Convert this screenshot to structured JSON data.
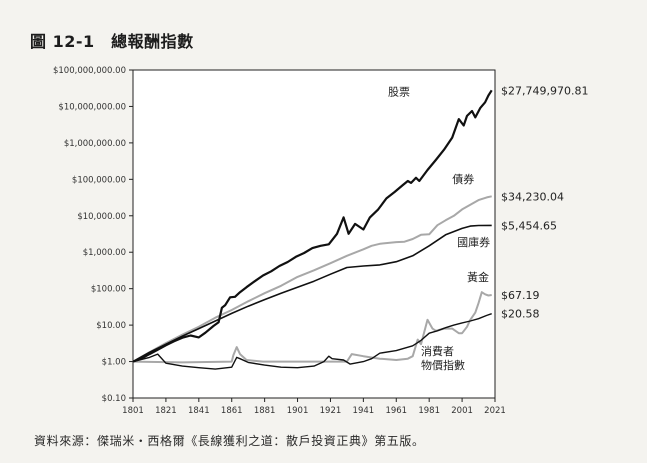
{
  "figure": {
    "title": "圖 12-1　總報酬指數",
    "source": "資料來源：傑瑞米・西格爾《長線獲利之道：散戶投資正典》第五版。"
  },
  "chart_data": {
    "type": "line",
    "y_scale": "log",
    "xlim": [
      1801,
      2021
    ],
    "ylim": [
      0.1,
      100000000
    ],
    "grid": false,
    "x_ticks": [
      1801,
      1821,
      1841,
      1861,
      1881,
      1901,
      1921,
      1941,
      1961,
      1981,
      2001,
      2021
    ],
    "y_ticks": [
      {
        "value": 0.1,
        "label": "$0.10"
      },
      {
        "value": 1,
        "label": "$1.00"
      },
      {
        "value": 10,
        "label": "$10.00"
      },
      {
        "value": 100,
        "label": "$100.00"
      },
      {
        "value": 1000,
        "label": "$1,000.00"
      },
      {
        "value": 10000,
        "label": "$10,000.00"
      },
      {
        "value": 100000,
        "label": "$100,000.00"
      },
      {
        "value": 1000000,
        "label": "$1,000,000.00"
      },
      {
        "value": 10000000,
        "label": "$10,000,000.00"
      },
      {
        "value": 100000000,
        "label": "$100,000,000.00"
      }
    ],
    "series": [
      {
        "name": "股票",
        "end_label": "$27,749,970.81",
        "color": "#111111",
        "width": 2.2,
        "label_anchor": [
          1956,
          20000000
        ],
        "points": [
          [
            1801,
            1
          ],
          [
            1806,
            1.2
          ],
          [
            1811,
            1.6
          ],
          [
            1816,
            2.1
          ],
          [
            1821,
            2.8
          ],
          [
            1826,
            3.6
          ],
          [
            1831,
            4.5
          ],
          [
            1836,
            5.2
          ],
          [
            1841,
            4.6
          ],
          [
            1845,
            6.2
          ],
          [
            1850,
            9.5
          ],
          [
            1853,
            12
          ],
          [
            1855,
            30
          ],
          [
            1857,
            35
          ],
          [
            1860,
            58
          ],
          [
            1863,
            60
          ],
          [
            1866,
            80
          ],
          [
            1870,
            110
          ],
          [
            1875,
            160
          ],
          [
            1880,
            230
          ],
          [
            1885,
            300
          ],
          [
            1890,
            420
          ],
          [
            1895,
            540
          ],
          [
            1900,
            750
          ],
          [
            1905,
            950
          ],
          [
            1910,
            1300
          ],
          [
            1915,
            1500
          ],
          [
            1920,
            1650
          ],
          [
            1925,
            3200
          ],
          [
            1929,
            9000
          ],
          [
            1932,
            3200
          ],
          [
            1936,
            6000
          ],
          [
            1941,
            4200
          ],
          [
            1945,
            9000
          ],
          [
            1950,
            15000
          ],
          [
            1955,
            30000
          ],
          [
            1960,
            45000
          ],
          [
            1965,
            70000
          ],
          [
            1968,
            90000
          ],
          [
            1970,
            80000
          ],
          [
            1973,
            110000
          ],
          [
            1975,
            90000
          ],
          [
            1980,
            180000
          ],
          [
            1985,
            340000
          ],
          [
            1990,
            650000
          ],
          [
            1995,
            1400000
          ],
          [
            1999,
            4500000
          ],
          [
            2002,
            3000000
          ],
          [
            2004,
            5500000
          ],
          [
            2007,
            7500000
          ],
          [
            2009,
            5000000
          ],
          [
            2012,
            9000000
          ],
          [
            2015,
            13000000
          ],
          [
            2017,
            20000000
          ],
          [
            2019,
            27749970.81
          ]
        ]
      },
      {
        "name": "債券",
        "end_label": "$34,230.04",
        "color": "#a8a8a8",
        "width": 2,
        "label_anchor": [
          1995,
          80000
        ],
        "points": [
          [
            1801,
            1
          ],
          [
            1811,
            1.8
          ],
          [
            1821,
            3.2
          ],
          [
            1831,
            5.5
          ],
          [
            1841,
            9
          ],
          [
            1851,
            16
          ],
          [
            1861,
            26
          ],
          [
            1871,
            45
          ],
          [
            1881,
            75
          ],
          [
            1891,
            120
          ],
          [
            1901,
            210
          ],
          [
            1911,
            320
          ],
          [
            1921,
            500
          ],
          [
            1931,
            800
          ],
          [
            1941,
            1200
          ],
          [
            1946,
            1500
          ],
          [
            1951,
            1700
          ],
          [
            1961,
            1900
          ],
          [
            1966,
            1950
          ],
          [
            1971,
            2300
          ],
          [
            1976,
            3000
          ],
          [
            1981,
            3100
          ],
          [
            1986,
            5500
          ],
          [
            1991,
            7500
          ],
          [
            1996,
            10000
          ],
          [
            2001,
            15000
          ],
          [
            2006,
            20000
          ],
          [
            2011,
            27000
          ],
          [
            2016,
            32000
          ],
          [
            2019,
            34230.04
          ]
        ]
      },
      {
        "name": "國庫券",
        "end_label": "$5,454.65",
        "color": "#111111",
        "width": 1.6,
        "label_anchor": [
          1998,
          1500
        ],
        "points": [
          [
            1801,
            1
          ],
          [
            1811,
            1.8
          ],
          [
            1821,
            3
          ],
          [
            1831,
            5
          ],
          [
            1841,
            8
          ],
          [
            1851,
            13
          ],
          [
            1861,
            21
          ],
          [
            1871,
            33
          ],
          [
            1881,
            50
          ],
          [
            1891,
            75
          ],
          [
            1901,
            110
          ],
          [
            1911,
            160
          ],
          [
            1921,
            250
          ],
          [
            1931,
            380
          ],
          [
            1941,
            420
          ],
          [
            1951,
            450
          ],
          [
            1961,
            550
          ],
          [
            1971,
            800
          ],
          [
            1981,
            1500
          ],
          [
            1991,
            3000
          ],
          [
            2001,
            4500
          ],
          [
            2006,
            5200
          ],
          [
            2011,
            5400
          ],
          [
            2019,
            5454.65
          ]
        ]
      },
      {
        "name": "黃金",
        "end_label": "$67.19",
        "color": "#a8a8a8",
        "width": 2,
        "label_anchor": [
          2004,
          160
        ],
        "points": [
          [
            1801,
            1
          ],
          [
            1831,
            0.95
          ],
          [
            1861,
            1
          ],
          [
            1862,
            1.5
          ],
          [
            1864,
            2.5
          ],
          [
            1866,
            1.6
          ],
          [
            1870,
            1.1
          ],
          [
            1880,
            1
          ],
          [
            1901,
            1
          ],
          [
            1931,
            1
          ],
          [
            1934,
            1.6
          ],
          [
            1941,
            1.4
          ],
          [
            1951,
            1.2
          ],
          [
            1961,
            1.1
          ],
          [
            1968,
            1.2
          ],
          [
            1971,
            1.4
          ],
          [
            1974,
            4
          ],
          [
            1976,
            3
          ],
          [
            1980,
            14
          ],
          [
            1983,
            8
          ],
          [
            1985,
            7
          ],
          [
            1990,
            8
          ],
          [
            1995,
            8
          ],
          [
            1999,
            6
          ],
          [
            2001,
            6
          ],
          [
            2004,
            9
          ],
          [
            2006,
            14
          ],
          [
            2009,
            22
          ],
          [
            2011,
            40
          ],
          [
            2013,
            80
          ],
          [
            2015,
            70
          ],
          [
            2017,
            65
          ],
          [
            2019,
            67.19
          ]
        ]
      },
      {
        "name": "消費者物價指數",
        "label_lines": [
          "消費者",
          "物價指數"
        ],
        "end_label": "$20.58",
        "color": "#111111",
        "width": 1.4,
        "label_anchor": [
          1976,
          1.5
        ],
        "points": [
          [
            1801,
            1
          ],
          [
            1811,
            1.3
          ],
          [
            1816,
            1.6
          ],
          [
            1821,
            0.9
          ],
          [
            1831,
            0.75
          ],
          [
            1841,
            0.68
          ],
          [
            1851,
            0.62
          ],
          [
            1861,
            0.7
          ],
          [
            1864,
            1.3
          ],
          [
            1866,
            1.2
          ],
          [
            1871,
            0.95
          ],
          [
            1881,
            0.8
          ],
          [
            1891,
            0.7
          ],
          [
            1901,
            0.68
          ],
          [
            1911,
            0.75
          ],
          [
            1917,
            1
          ],
          [
            1920,
            1.4
          ],
          [
            1922,
            1.2
          ],
          [
            1929,
            1.1
          ],
          [
            1933,
            0.85
          ],
          [
            1941,
            1
          ],
          [
            1946,
            1.2
          ],
          [
            1951,
            1.7
          ],
          [
            1961,
            2
          ],
          [
            1971,
            2.7
          ],
          [
            1976,
            3.8
          ],
          [
            1981,
            6
          ],
          [
            1986,
            7
          ],
          [
            1991,
            8.5
          ],
          [
            1996,
            10
          ],
          [
            2001,
            11.5
          ],
          [
            2006,
            13
          ],
          [
            2011,
            15
          ],
          [
            2016,
            18.5
          ],
          [
            2019,
            20.58
          ]
        ]
      }
    ]
  }
}
